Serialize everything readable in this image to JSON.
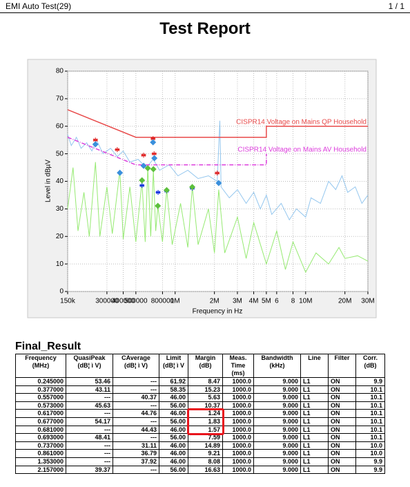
{
  "header": {
    "app": "EMI Auto Test(29)",
    "page": "1 / 1",
    "title": "Test Report"
  },
  "chart_data": {
    "type": "line",
    "xscale": "log",
    "xlabel": "Frequency in Hz",
    "ylabel": "Level in dBµV",
    "grid": true,
    "xlim": [
      150000,
      30000000
    ],
    "ylim": [
      0,
      80
    ],
    "xticks": [
      {
        "value": 150000,
        "label": "150k"
      },
      300000,
      400000,
      500000,
      800000,
      {
        "value": 1000000,
        "label": "1M"
      },
      {
        "value": 2000000,
        "label": "2M"
      },
      {
        "value": 3000000,
        "label": "3M"
      },
      {
        "value": 4000000,
        "label": "4M"
      },
      {
        "value": 5000000,
        "label": "5M"
      },
      {
        "value": 6000000,
        "label": "6"
      },
      {
        "value": 8000000,
        "label": "8"
      },
      {
        "value": 10000000,
        "label": "10M"
      },
      {
        "value": 20000000,
        "label": "20M"
      },
      {
        "value": 30000000,
        "label": "30M"
      }
    ],
    "yticks": [
      0,
      10,
      20,
      30,
      40,
      50,
      60,
      70,
      80
    ],
    "series": [
      {
        "color": "#93c6ee",
        "x": [
          150000,
          160000,
          175000,
          190000,
          210000,
          230000,
          250000,
          280000,
          320000,
          360000,
          400000,
          450000,
          520000,
          600000,
          680000,
          760000,
          900000,
          1050000,
          1250000,
          1500000,
          1800000,
          2100000,
          2200000,
          2250000,
          2600000,
          3000000,
          3500000,
          4000000,
          4500000,
          5000000,
          5500000,
          6500000,
          7500000,
          8500000,
          10000000,
          11000000,
          13000000,
          15000000,
          17000000,
          19000000,
          21000000,
          24000000,
          27000000,
          30000000
        ],
        "values": [
          57,
          53,
          56,
          52,
          54,
          51,
          55,
          50,
          52,
          49,
          51,
          47,
          48,
          45,
          48,
          44,
          46,
          42,
          44,
          41,
          42,
          40,
          62,
          38,
          34,
          37,
          32,
          36,
          30,
          35,
          28,
          32,
          26,
          30,
          27,
          34,
          32,
          40,
          37,
          42,
          36,
          38,
          32,
          35
        ]
      },
      {
        "color": "#96ea72",
        "x": [
          150000,
          165000,
          180000,
          200000,
          220000,
          245000,
          265000,
          300000,
          330000,
          377000,
          400000,
          450000,
          500000,
          557000,
          590000,
          617000,
          650000,
          681000,
          710000,
          737000,
          800000,
          861000,
          950000,
          1100000,
          1250000,
          1353000,
          1500000,
          1800000,
          2000000,
          2157000,
          2400000,
          3000000,
          3500000,
          4000000,
          5000000,
          6000000,
          7000000,
          8000000,
          10000000,
          12000000,
          15000000,
          18000000,
          20000000,
          25000000,
          30000000
        ],
        "values": [
          30,
          45,
          22,
          36,
          20,
          47,
          20,
          38,
          21,
          44,
          19,
          38,
          18,
          40,
          18,
          45,
          20,
          44,
          22,
          31,
          18,
          37,
          17,
          32,
          16,
          38,
          17,
          30,
          14,
          37,
          14,
          27,
          12,
          25,
          10,
          22,
          8,
          18,
          7,
          14,
          10,
          16,
          12,
          13,
          11
        ]
      },
      {
        "name": "CISPR14 Voltage on Mains QP Household",
        "color": "#e84a4a",
        "x": [
          150000,
          500000,
          5000000,
          5000000,
          30000000
        ],
        "values": [
          66,
          56,
          56,
          60,
          60
        ]
      },
      {
        "name": "CISPR14 Voltage on Mains AV Household",
        "color": "#dc3cdc",
        "dash": true,
        "x": [
          150000,
          500000,
          5000000,
          5000000
        ],
        "values": [
          56,
          46,
          46,
          50
        ]
      }
    ],
    "points": [
      {
        "marker": "star",
        "color": "#e02020",
        "x": [
          245000,
          360000,
          573000,
          677000,
          690000,
          2100000
        ],
        "values": [
          55,
          51.5,
          49.5,
          55.5,
          50,
          43
        ]
      },
      {
        "marker": "star",
        "color": "#1030e0",
        "x": [
          557000,
          740000,
          860000,
          1353000
        ],
        "values": [
          38.5,
          36,
          36.5,
          37.5
        ]
      },
      {
        "marker": "diamond",
        "color": "#3a8fdc",
        "x": [
          245000,
          377000,
          573000,
          677000,
          693000,
          2157000
        ],
        "values": [
          53.46,
          43.11,
          45.63,
          54.17,
          48.41,
          39.37
        ]
      },
      {
        "marker": "diamond",
        "color": "#5cbf3c",
        "x": [
          557000,
          617000,
          681000,
          737000,
          861000,
          1353000
        ],
        "values": [
          40.37,
          44.76,
          44.43,
          31.11,
          36.79,
          37.92
        ]
      }
    ]
  },
  "table": {
    "title": "Final_Result",
    "columns": [
      "Frequency\n(MHz)",
      "QuasiPeak\n(dB¦ ì V)",
      "CAverage\n(dB¦ ì V)",
      "Limit\n(dB¦ ì V",
      "Margin\n(dB)",
      "Meas.\nTime\n(ms)",
      "Bandwidth\n(kHz)",
      "Line",
      "Filter",
      "Corr.\n(dB)"
    ],
    "rows": [
      [
        "0.245000",
        "53.46",
        "---",
        "61.92",
        "8.47",
        "1000.0",
        "9.000",
        "L1",
        "ON",
        "9.9"
      ],
      [
        "0.377000",
        "43.11",
        "---",
        "58.35",
        "15.23",
        "1000.0",
        "9.000",
        "L1",
        "ON",
        "10.1"
      ],
      [
        "0.557000",
        "---",
        "40.37",
        "46.00",
        "5.63",
        "1000.0",
        "9.000",
        "L1",
        "ON",
        "10.1"
      ],
      [
        "0.573000",
        "45.63",
        "---",
        "56.00",
        "10.37",
        "1000.0",
        "9.000",
        "L1",
        "ON",
        "10.1"
      ],
      [
        "0.617000",
        "---",
        "44.76",
        "46.00",
        "1.24",
        "1000.0",
        "9.000",
        "L1",
        "ON",
        "10.1"
      ],
      [
        "0.677000",
        "54.17",
        "---",
        "56.00",
        "1.83",
        "1000.0",
        "9.000",
        "L1",
        "ON",
        "10.1"
      ],
      [
        "0.681000",
        "---",
        "44.43",
        "46.00",
        "1.57",
        "1000.0",
        "9.000",
        "L1",
        "ON",
        "10.1"
      ],
      [
        "0.693000",
        "48.41",
        "---",
        "56.00",
        "7.59",
        "1000.0",
        "9.000",
        "L1",
        "ON",
        "10.1"
      ],
      [
        "0.737000",
        "---",
        "31.11",
        "46.00",
        "14.89",
        "1000.0",
        "9.000",
        "L1",
        "ON",
        "10.0"
      ],
      [
        "0.861000",
        "---",
        "36.79",
        "46.00",
        "9.21",
        "1000.0",
        "9.000",
        "L1",
        "ON",
        "10.0"
      ],
      [
        "1.353000",
        "---",
        "37.92",
        "46.00",
        "8.08",
        "1000.0",
        "9.000",
        "L1",
        "ON",
        "9.9"
      ],
      [
        "2.157000",
        "39.37",
        "---",
        "56.00",
        "16.63",
        "1000.0",
        "9.000",
        "L1",
        "ON",
        "9.9"
      ]
    ]
  }
}
